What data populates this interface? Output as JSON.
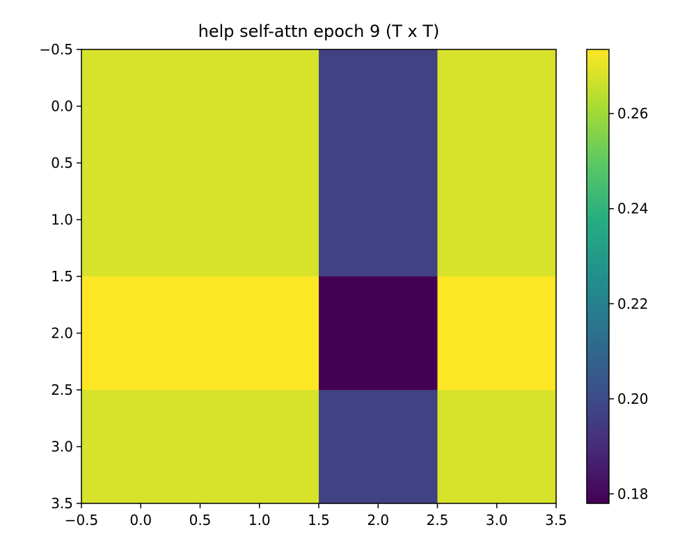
{
  "chart_data": {
    "type": "heatmap",
    "title": "help self-attn epoch 9 (T x T)",
    "xlabel": "",
    "ylabel": "",
    "grid": false,
    "xlim": [
      -0.5,
      3.5
    ],
    "ylim": [
      3.5,
      -0.5
    ],
    "xticks": [
      -0.5,
      0.0,
      0.5,
      1.0,
      1.5,
      2.0,
      2.5,
      3.0,
      3.5
    ],
    "xtick_labels": [
      "−0.5",
      "0.0",
      "0.5",
      "1.0",
      "1.5",
      "2.0",
      "2.5",
      "3.0",
      "3.5"
    ],
    "yticks": [
      -0.5,
      0.0,
      0.5,
      1.0,
      1.5,
      2.0,
      2.5,
      3.0,
      3.5
    ],
    "ytick_labels": [
      "−0.5",
      "0.0",
      "0.5",
      "1.0",
      "1.5",
      "2.0",
      "2.5",
      "3.0",
      "3.5"
    ],
    "matrix": [
      [
        0.268,
        0.268,
        0.197,
        0.268
      ],
      [
        0.268,
        0.268,
        0.197,
        0.268
      ],
      [
        0.2735,
        0.2735,
        0.178,
        0.2735
      ],
      [
        0.268,
        0.268,
        0.197,
        0.268
      ]
    ],
    "colormap": "viridis",
    "colorbar": {
      "vmin": 0.178,
      "vmax": 0.2735,
      "ticks": [
        0.18,
        0.2,
        0.22,
        0.24,
        0.26
      ],
      "tick_labels": [
        "0.18",
        "0.20",
        "0.22",
        "0.24",
        "0.26"
      ]
    }
  }
}
